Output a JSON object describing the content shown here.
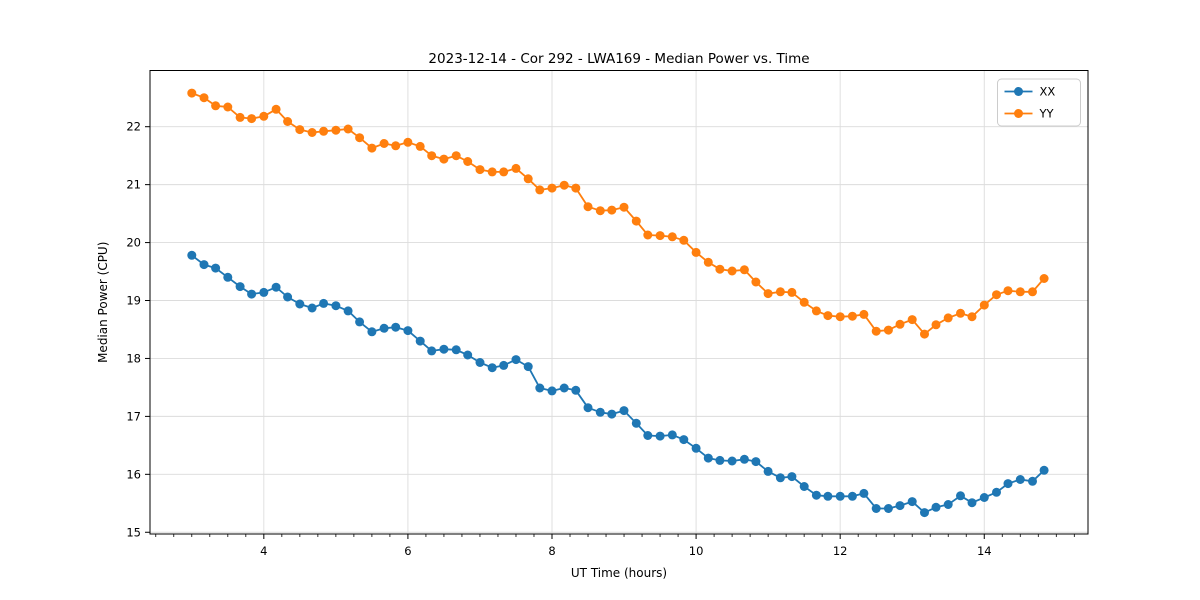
{
  "figure": {
    "title": "2023-12-14 - Cor 292 - LWA169 - Median Power vs. Time",
    "background": "#ffffff"
  },
  "axes": {
    "spine_color": "#000000",
    "tick_color": "#000000",
    "grid_color": "#dcdcdc",
    "x_tick_labels": [
      "4",
      "6",
      "8",
      "10",
      "12",
      "14"
    ],
    "y_tick_labels": [
      "15",
      "16",
      "17",
      "18",
      "19",
      "20",
      "21",
      "22"
    ]
  },
  "legend": {
    "border_color": "#cccccc",
    "background": "#ffffff",
    "items": [
      {
        "label": "XX",
        "color": "#1f77b4"
      },
      {
        "label": "YY",
        "color": "#ff7f0e"
      }
    ]
  },
  "chart_data": {
    "type": "line",
    "title": "2023-12-14 - Cor 292 - LWA169 - Median Power vs. Time",
    "xlabel": "UT Time (hours)",
    "ylabel": "Median Power (CPU)",
    "xlim": [
      2.42,
      15.44
    ],
    "ylim": [
      14.97,
      22.97
    ],
    "x_major_ticks": [
      4,
      6,
      8,
      10,
      12,
      14
    ],
    "x_minor_tick_step": 0.25,
    "y_major_ticks": [
      15,
      16,
      17,
      18,
      19,
      20,
      21,
      22
    ],
    "grid": "major",
    "legend_position": "upper right",
    "marker": "circle",
    "x": [
      3.0,
      3.17,
      3.33,
      3.5,
      3.67,
      3.83,
      4.0,
      4.17,
      4.33,
      4.5,
      4.67,
      4.83,
      5.0,
      5.17,
      5.33,
      5.5,
      5.67,
      5.83,
      6.0,
      6.17,
      6.33,
      6.5,
      6.67,
      6.83,
      7.0,
      7.17,
      7.33,
      7.5,
      7.67,
      7.83,
      8.0,
      8.17,
      8.33,
      8.5,
      8.67,
      8.83,
      9.0,
      9.17,
      9.33,
      9.5,
      9.67,
      9.83,
      10.0,
      10.17,
      10.33,
      10.5,
      10.67,
      10.83,
      11.0,
      11.17,
      11.33,
      11.5,
      11.67,
      11.83,
      12.0,
      12.17,
      12.33,
      12.5,
      12.67,
      12.83,
      13.0,
      13.17,
      13.33,
      13.5,
      13.67,
      13.83,
      14.0,
      14.17,
      14.33,
      14.5,
      14.67,
      14.83
    ],
    "series": [
      {
        "name": "XX",
        "color": "#1f77b4",
        "values": [
          19.78,
          19.62,
          19.56,
          19.4,
          19.24,
          19.11,
          19.14,
          19.23,
          19.06,
          18.94,
          18.87,
          18.95,
          18.91,
          18.82,
          18.63,
          18.46,
          18.52,
          18.54,
          18.48,
          18.3,
          18.13,
          18.16,
          18.15,
          18.06,
          17.93,
          17.84,
          17.88,
          17.98,
          17.86,
          17.49,
          17.44,
          17.49,
          17.45,
          17.15,
          17.07,
          17.04,
          17.1,
          16.88,
          16.67,
          16.66,
          16.68,
          16.6,
          16.45,
          16.28,
          16.24,
          16.23,
          16.26,
          16.22,
          16.05,
          15.94,
          15.96,
          15.79,
          15.64,
          15.62,
          15.62,
          15.62,
          15.67,
          15.41,
          15.41,
          15.46,
          15.53,
          15.34,
          15.43,
          15.48,
          15.63,
          15.51,
          15.6,
          15.69,
          15.84,
          15.91,
          15.88,
          16.07
        ]
      },
      {
        "name": "YY",
        "color": "#ff7f0e",
        "values": [
          22.58,
          22.5,
          22.36,
          22.34,
          22.16,
          22.14,
          22.18,
          22.3,
          22.09,
          21.95,
          21.9,
          21.92,
          21.94,
          21.96,
          21.81,
          21.63,
          21.71,
          21.67,
          21.73,
          21.66,
          21.5,
          21.44,
          21.5,
          21.4,
          21.26,
          21.22,
          21.22,
          21.28,
          21.1,
          20.91,
          20.94,
          20.99,
          20.94,
          20.62,
          20.55,
          20.56,
          20.61,
          20.37,
          20.13,
          20.12,
          20.1,
          20.04,
          19.83,
          19.66,
          19.54,
          19.51,
          19.53,
          19.32,
          19.12,
          19.15,
          19.14,
          18.97,
          18.82,
          18.74,
          18.72,
          18.73,
          18.76,
          18.47,
          18.49,
          18.59,
          18.67,
          18.42,
          18.58,
          18.7,
          18.78,
          18.72,
          18.92,
          19.1,
          19.17,
          19.15,
          19.15,
          19.38
        ]
      }
    ]
  }
}
